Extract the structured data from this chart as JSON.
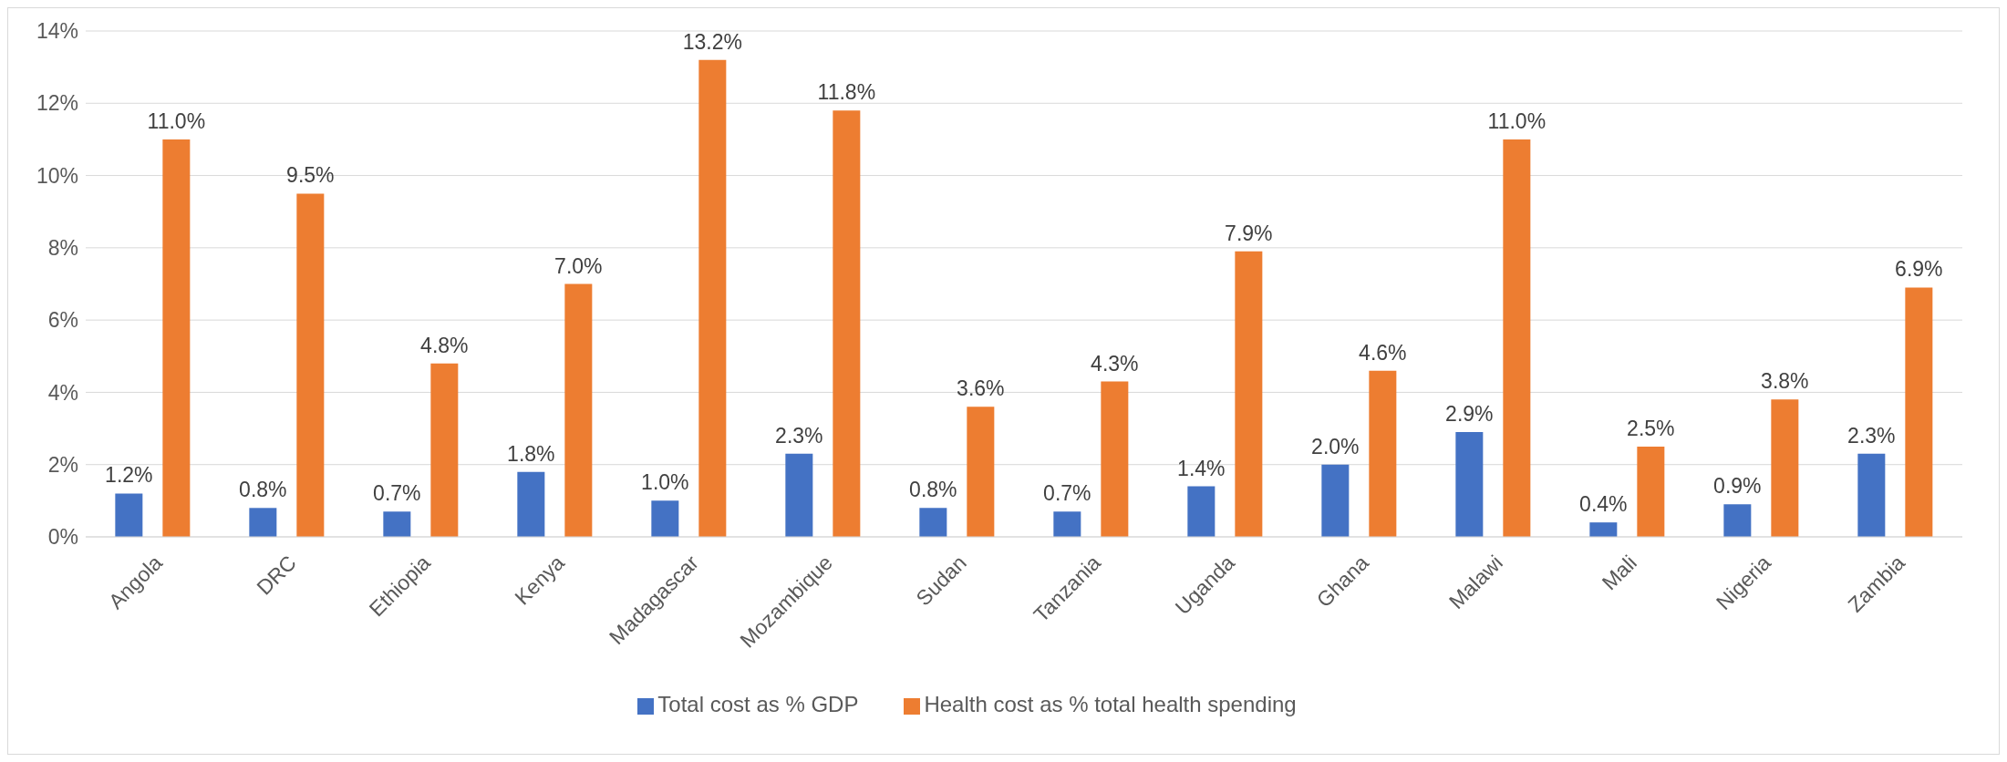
{
  "chart_data": {
    "type": "bar",
    "categories": [
      "Angola",
      "DRC",
      "Ethiopia",
      "Kenya",
      "Madagascar",
      "Mozambique",
      "Sudan",
      "Tanzania",
      "Uganda",
      "Ghana",
      "Malawi",
      "Mali",
      "Nigeria",
      "Zambia"
    ],
    "series": [
      {
        "name": "Total cost as % GDP",
        "color": "#4472c4",
        "values": [
          1.2,
          0.8,
          0.7,
          1.8,
          1.0,
          2.3,
          0.8,
          0.7,
          1.4,
          2.0,
          2.9,
          0.4,
          0.9,
          2.3
        ],
        "value_labels": [
          "1.2%",
          "0.8%",
          "0.7%",
          "1.8%",
          "1.0%",
          "2.3%",
          "0.8%",
          "0.7%",
          "1.4%",
          "2.0%",
          "2.9%",
          "0.4%",
          "0.9%",
          "2.3%"
        ]
      },
      {
        "name": "Health cost as % total health spending",
        "color": "#ed7d31",
        "values": [
          11.0,
          9.5,
          4.8,
          7.0,
          13.2,
          11.8,
          3.6,
          4.3,
          7.9,
          4.6,
          11.0,
          2.5,
          3.8,
          6.9
        ],
        "value_labels": [
          "11.0%",
          "9.5%",
          "4.8%",
          "7.0%",
          "13.2%",
          "11.8%",
          "3.6%",
          "4.3%",
          "7.9%",
          "4.6%",
          "11.0%",
          "2.5%",
          "3.8%",
          "6.9%"
        ]
      }
    ],
    "ylim": [
      0,
      14
    ],
    "yticks": [
      {
        "value": 0,
        "label": "0%"
      },
      {
        "value": 2,
        "label": "2%"
      },
      {
        "value": 4,
        "label": "4%"
      },
      {
        "value": 6,
        "label": "6%"
      },
      {
        "value": 8,
        "label": "8%"
      },
      {
        "value": 10,
        "label": "10%"
      },
      {
        "value": 12,
        "label": "12%"
      },
      {
        "value": 14,
        "label": "14%"
      }
    ],
    "grid": "y",
    "legend": "bottom"
  }
}
